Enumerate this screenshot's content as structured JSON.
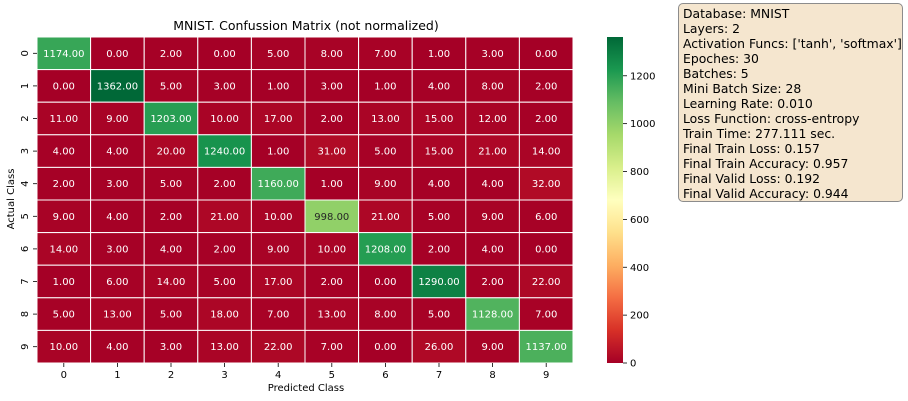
{
  "chart_data": {
    "type": "heatmap",
    "title": "MNIST. Confussion Matrix (not normalized)",
    "xlabel": "Predicted Class",
    "ylabel": "Actual Class",
    "x_categories": [
      "0",
      "1",
      "2",
      "3",
      "4",
      "5",
      "6",
      "7",
      "8",
      "9"
    ],
    "y_categories": [
      "0",
      "1",
      "2",
      "3",
      "4",
      "5",
      "6",
      "7",
      "8",
      "9"
    ],
    "matrix": [
      [
        1174,
        0,
        2,
        0,
        5,
        8,
        7,
        1,
        3,
        0
      ],
      [
        0,
        1362,
        5,
        3,
        1,
        3,
        1,
        4,
        8,
        2
      ],
      [
        11,
        9,
        1203,
        10,
        17,
        2,
        13,
        15,
        12,
        2
      ],
      [
        4,
        4,
        20,
        1240,
        1,
        31,
        5,
        15,
        21,
        14
      ],
      [
        2,
        3,
        5,
        2,
        1160,
        1,
        9,
        4,
        4,
        32
      ],
      [
        9,
        4,
        2,
        21,
        10,
        998,
        21,
        5,
        9,
        6
      ],
      [
        14,
        3,
        4,
        2,
        9,
        10,
        1208,
        2,
        4,
        0
      ],
      [
        1,
        6,
        14,
        5,
        17,
        2,
        0,
        1290,
        2,
        22
      ],
      [
        5,
        13,
        5,
        18,
        7,
        13,
        8,
        5,
        1128,
        7
      ],
      [
        10,
        4,
        3,
        13,
        22,
        7,
        0,
        26,
        9,
        1137
      ]
    ],
    "colormap": "RdYlGn",
    "colorbar": {
      "min": 0,
      "max": 1362,
      "ticks": [
        0,
        200,
        400,
        600,
        800,
        1000,
        1200
      ]
    },
    "value_format": "2 decimals"
  },
  "info": [
    "Database: MNIST",
    "Layers: 2",
    "Activation Funcs: ['tanh', 'softmax']",
    "Epoches: 30",
    "Batches: 5",
    "Mini Batch Size: 28",
    "Learning Rate: 0.010",
    "Loss Function: cross-entropy",
    "Train Time: 277.111 sec.",
    "Final Train Loss: 0.157",
    "Final Train Accuracy: 0.957",
    "Final Valid Loss: 0.192",
    "Final Valid Accuracy: 0.944"
  ],
  "colors": {
    "low": "#a50026",
    "mid": "#ffffbf",
    "high": "#006837",
    "info_box_bg": "#f5e6cf"
  }
}
